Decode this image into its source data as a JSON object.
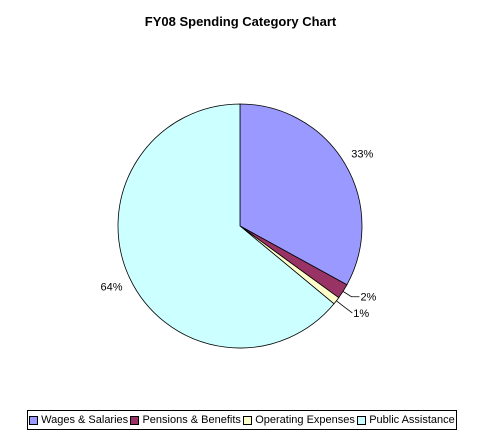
{
  "chart_data": {
    "type": "pie",
    "title": "FY08 Spending Category Chart",
    "categories": [
      "Wages & Salaries",
      "Pensions & Benefits",
      "Operating Expenses",
      "Public Assistance"
    ],
    "values": [
      33,
      2,
      1,
      64
    ],
    "labels": [
      "33%",
      "2%",
      "1%",
      "64%"
    ],
    "colors": [
      "#9999ff",
      "#993366",
      "#ffffcc",
      "#ccffff"
    ],
    "legend_position": "bottom"
  }
}
